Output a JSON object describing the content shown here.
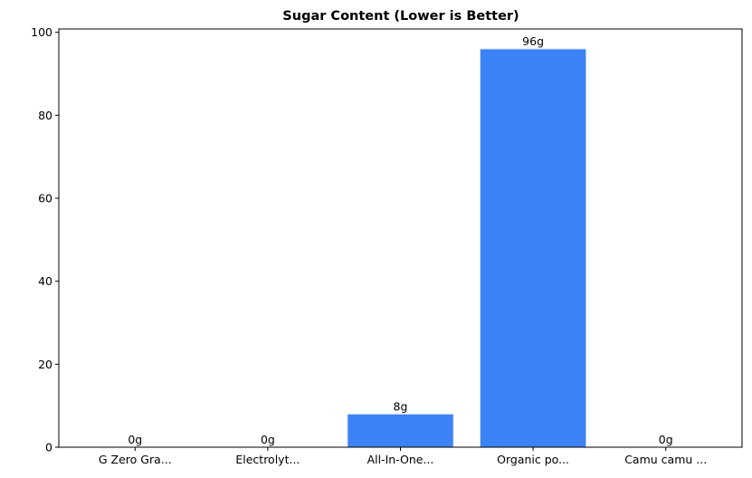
{
  "chart_data": {
    "type": "bar",
    "title": "Sugar Content (Lower is Better)",
    "categories": [
      "G Zero Gra...",
      "Electrolyt...",
      "All-In-One...",
      "Organic po...",
      "Camu camu ..."
    ],
    "values": [
      0,
      0,
      8,
      96,
      0
    ],
    "value_labels": [
      "0g",
      "0g",
      "8g",
      "96g",
      "0g"
    ],
    "color": "#3b82f6",
    "ylim": [
      0,
      100.8
    ],
    "yticks": [
      0,
      20,
      40,
      60,
      80,
      100
    ]
  }
}
